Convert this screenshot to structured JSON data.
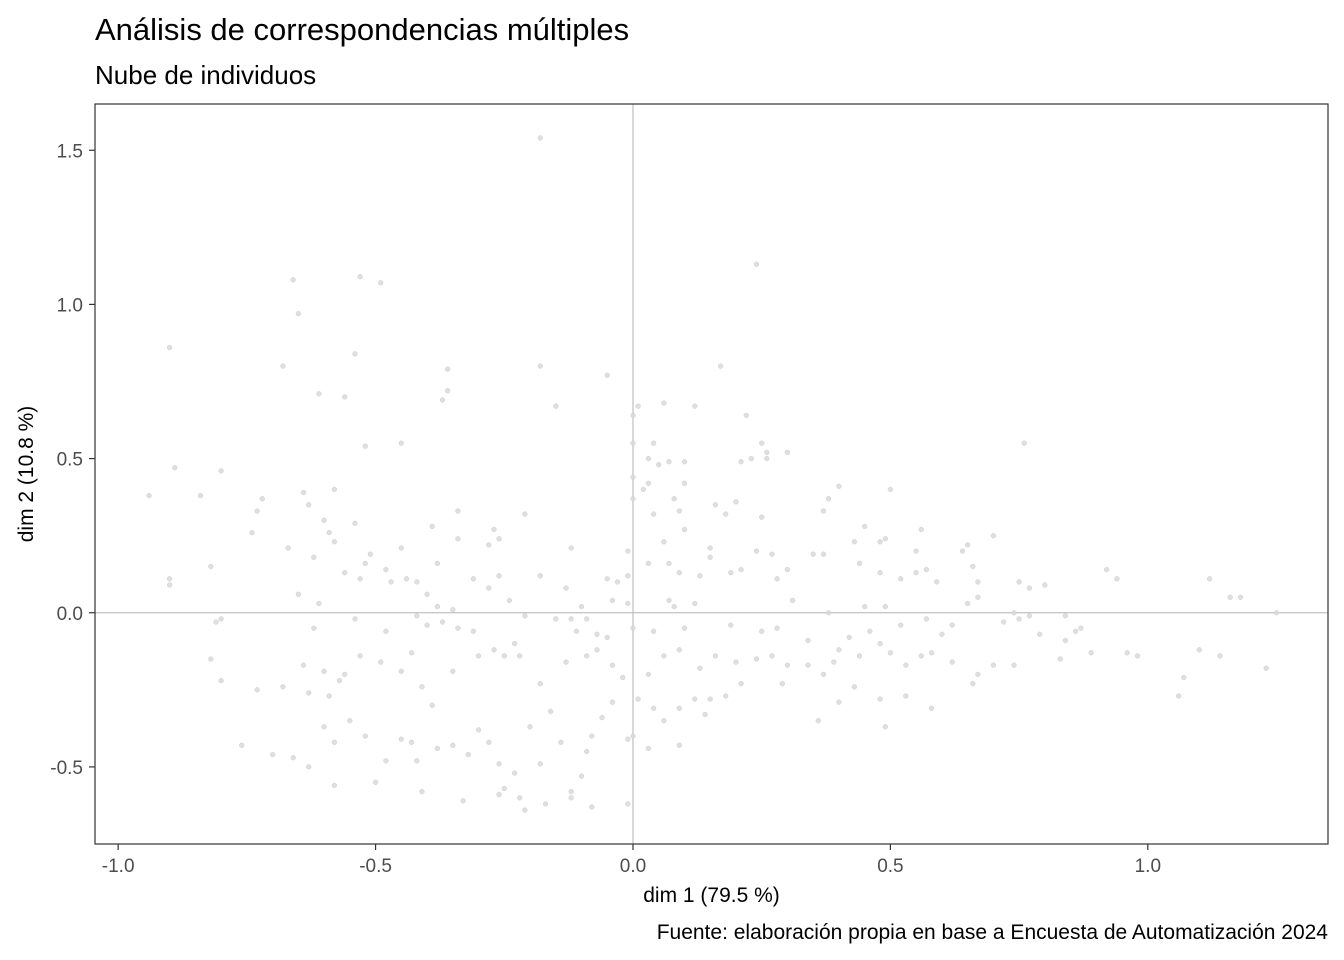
{
  "chart_data": {
    "type": "scatter",
    "title": "Análisis de correspondencias múltiples",
    "subtitle": "Nube de individuos",
    "xlabel": "dim 1 (79.5 %)",
    "ylabel": "dim 2 (10.8 %)",
    "caption": "Fuente: elaboración propia en base a Encuesta de Automatización 2024",
    "xlim": [
      -1.045,
      1.35
    ],
    "ylim": [
      -0.75,
      1.65
    ],
    "xticks": [
      -1.0,
      -0.5,
      0.0,
      0.5,
      1.0
    ],
    "xtick_labels": [
      "-1.0",
      "-0.5",
      "0.0",
      "0.5",
      "1.0"
    ],
    "yticks": [
      -0.5,
      0.0,
      0.5,
      1.0,
      1.5
    ],
    "ytick_labels": [
      "-0.5",
      "0.0",
      "0.5",
      "1.0",
      "1.5"
    ],
    "reference_lines": {
      "x": 0,
      "y": 0
    },
    "grid": false,
    "point_color": "#d9d9d9",
    "points": [
      [
        -0.18,
        1.54
      ],
      [
        0.24,
        1.13
      ],
      [
        -0.53,
        1.09
      ],
      [
        -0.66,
        1.08
      ],
      [
        -0.49,
        1.07
      ],
      [
        -0.65,
        0.97
      ],
      [
        -0.9,
        0.86
      ],
      [
        -0.54,
        0.84
      ],
      [
        0.17,
        0.8
      ],
      [
        -0.68,
        0.8
      ],
      [
        -0.18,
        0.8
      ],
      [
        -0.36,
        0.79
      ],
      [
        -0.05,
        0.77
      ],
      [
        -0.36,
        0.72
      ],
      [
        -0.61,
        0.71
      ],
      [
        -0.37,
        0.69
      ],
      [
        -0.56,
        0.7
      ],
      [
        -0.15,
        0.67
      ],
      [
        0.01,
        0.67
      ],
      [
        0.06,
        0.68
      ],
      [
        0.12,
        0.67
      ],
      [
        0.0,
        0.64
      ],
      [
        0.22,
        0.64
      ],
      [
        0.0,
        0.55
      ],
      [
        0.04,
        0.55
      ],
      [
        0.25,
        0.55
      ],
      [
        0.26,
        0.52
      ],
      [
        0.3,
        0.52
      ],
      [
        -0.45,
        0.55
      ],
      [
        0.76,
        0.55
      ],
      [
        -0.52,
        0.54
      ],
      [
        0.26,
        0.5
      ],
      [
        0.23,
        0.5
      ],
      [
        0.21,
        0.49
      ],
      [
        0.03,
        0.5
      ],
      [
        0.05,
        0.48
      ],
      [
        0.07,
        0.49
      ],
      [
        0.1,
        0.49
      ],
      [
        -0.89,
        0.47
      ],
      [
        -0.8,
        0.46
      ],
      [
        -0.94,
        0.38
      ],
      [
        -0.84,
        0.38
      ],
      [
        -0.73,
        0.33
      ],
      [
        -0.72,
        0.37
      ],
      [
        -0.64,
        0.39
      ],
      [
        -0.58,
        0.4
      ],
      [
        -0.63,
        0.35
      ],
      [
        0.0,
        0.44
      ],
      [
        0.03,
        0.42
      ],
      [
        0.02,
        0.4
      ],
      [
        0.1,
        0.42
      ],
      [
        0.08,
        0.37
      ],
      [
        0.16,
        0.35
      ],
      [
        0.2,
        0.36
      ],
      [
        0.4,
        0.41
      ],
      [
        0.5,
        0.4
      ],
      [
        0.38,
        0.37
      ],
      [
        0.37,
        0.33
      ],
      [
        0.04,
        0.32
      ],
      [
        0.0,
        0.37
      ],
      [
        0.09,
        0.33
      ],
      [
        0.25,
        0.31
      ],
      [
        -0.6,
        0.3
      ],
      [
        -0.54,
        0.29
      ],
      [
        -0.59,
        0.26
      ],
      [
        -0.74,
        0.26
      ],
      [
        -0.21,
        0.32
      ],
      [
        -0.34,
        0.33
      ],
      [
        -0.27,
        0.27
      ],
      [
        -0.34,
        0.24
      ],
      [
        0.18,
        0.32
      ],
      [
        0.06,
        0.23
      ],
      [
        0.1,
        0.27
      ],
      [
        0.45,
        0.28
      ],
      [
        0.56,
        0.27
      ],
      [
        0.7,
        0.25
      ],
      [
        -0.39,
        0.28
      ],
      [
        -0.58,
        0.23
      ],
      [
        -0.67,
        0.21
      ],
      [
        -0.62,
        0.18
      ],
      [
        -0.51,
        0.19
      ],
      [
        -0.45,
        0.21
      ],
      [
        -0.28,
        0.22
      ],
      [
        -0.26,
        0.24
      ],
      [
        -0.12,
        0.21
      ],
      [
        -0.01,
        0.2
      ],
      [
        0.15,
        0.21
      ],
      [
        0.15,
        0.18
      ],
      [
        0.24,
        0.2
      ],
      [
        0.27,
        0.19
      ],
      [
        0.35,
        0.19
      ],
      [
        0.43,
        0.23
      ],
      [
        0.49,
        0.24
      ],
      [
        0.48,
        0.23
      ],
      [
        0.55,
        0.2
      ],
      [
        0.64,
        0.2
      ],
      [
        0.65,
        0.22
      ],
      [
        -0.56,
        0.13
      ],
      [
        -0.52,
        0.16
      ],
      [
        -0.38,
        0.16
      ],
      [
        -0.48,
        0.14
      ],
      [
        -0.53,
        0.11
      ],
      [
        -0.31,
        0.11
      ],
      [
        -0.26,
        0.12
      ],
      [
        -0.28,
        0.08
      ],
      [
        -0.42,
        0.1
      ],
      [
        -0.44,
        0.11
      ],
      [
        -0.47,
        0.1
      ],
      [
        -0.18,
        0.12
      ],
      [
        -0.13,
        0.08
      ],
      [
        -0.05,
        0.11
      ],
      [
        -0.03,
        0.1
      ],
      [
        -0.01,
        0.12
      ],
      [
        0.03,
        0.16
      ],
      [
        0.07,
        0.16
      ],
      [
        0.09,
        0.13
      ],
      [
        0.13,
        0.12
      ],
      [
        0.19,
        0.13
      ],
      [
        0.21,
        0.14
      ],
      [
        0.28,
        0.11
      ],
      [
        0.3,
        0.14
      ],
      [
        0.37,
        0.19
      ],
      [
        0.44,
        0.16
      ],
      [
        0.48,
        0.13
      ],
      [
        0.52,
        0.11
      ],
      [
        0.55,
        0.13
      ],
      [
        0.57,
        0.14
      ],
      [
        0.66,
        0.15
      ],
      [
        0.59,
        0.1
      ],
      [
        0.67,
        0.1
      ],
      [
        0.75,
        0.1
      ],
      [
        0.77,
        0.08
      ],
      [
        0.8,
        0.09
      ],
      [
        0.92,
        0.14
      ],
      [
        0.94,
        0.11
      ],
      [
        1.12,
        0.11
      ],
      [
        1.16,
        0.05
      ],
      [
        1.18,
        0.05
      ],
      [
        1.25,
        0.0
      ],
      [
        -0.9,
        0.09
      ],
      [
        -0.82,
        0.15
      ],
      [
        -0.9,
        0.11
      ],
      [
        -0.4,
        0.06
      ],
      [
        -0.65,
        0.06
      ],
      [
        -0.61,
        0.03
      ],
      [
        -0.38,
        0.02
      ],
      [
        -0.35,
        0.01
      ],
      [
        -0.24,
        0.04
      ],
      [
        -0.21,
        -0.01
      ],
      [
        -0.1,
        0.02
      ],
      [
        -0.09,
        -0.02
      ],
      [
        -0.04,
        0.04
      ],
      [
        -0.01,
        0.03
      ],
      [
        0.08,
        0.02
      ],
      [
        0.07,
        0.04
      ],
      [
        0.12,
        0.03
      ],
      [
        0.31,
        0.04
      ],
      [
        0.38,
        0.0
      ],
      [
        0.49,
        0.02
      ],
      [
        0.45,
        0.02
      ],
      [
        0.57,
        -0.02
      ],
      [
        0.65,
        0.03
      ],
      [
        0.67,
        0.05
      ],
      [
        0.74,
        0.0
      ],
      [
        0.75,
        -0.02
      ],
      [
        0.77,
        -0.01
      ],
      [
        0.84,
        -0.01
      ],
      [
        -0.81,
        -0.03
      ],
      [
        -0.8,
        -0.02
      ],
      [
        -0.54,
        -0.02
      ],
      [
        -0.62,
        -0.05
      ],
      [
        -0.48,
        -0.06
      ],
      [
        -0.42,
        -0.01
      ],
      [
        -0.4,
        -0.04
      ],
      [
        -0.37,
        -0.03
      ],
      [
        -0.34,
        -0.05
      ],
      [
        -0.31,
        -0.06
      ],
      [
        -0.15,
        -0.02
      ],
      [
        -0.12,
        -0.02
      ],
      [
        -0.11,
        -0.06
      ],
      [
        -0.07,
        -0.07
      ],
      [
        -0.05,
        -0.08
      ],
      [
        0.0,
        -0.05
      ],
      [
        0.04,
        -0.06
      ],
      [
        0.1,
        -0.05
      ],
      [
        0.19,
        -0.04
      ],
      [
        0.25,
        -0.06
      ],
      [
        0.28,
        -0.05
      ],
      [
        0.34,
        -0.09
      ],
      [
        0.42,
        -0.08
      ],
      [
        0.46,
        -0.06
      ],
      [
        0.52,
        -0.04
      ],
      [
        0.6,
        -0.07
      ],
      [
        0.62,
        -0.04
      ],
      [
        0.72,
        -0.03
      ],
      [
        0.79,
        -0.07
      ],
      [
        0.84,
        -0.09
      ],
      [
        0.86,
        -0.06
      ],
      [
        0.87,
        -0.05
      ],
      [
        -0.82,
        -0.15
      ],
      [
        -0.8,
        -0.22
      ],
      [
        -0.73,
        -0.25
      ],
      [
        -0.68,
        -0.24
      ],
      [
        -0.64,
        -0.17
      ],
      [
        -0.6,
        -0.19
      ],
      [
        -0.63,
        -0.26
      ],
      [
        -0.59,
        -0.27
      ],
      [
        -0.57,
        -0.22
      ],
      [
        -0.56,
        -0.2
      ],
      [
        -0.53,
        -0.14
      ],
      [
        -0.49,
        -0.16
      ],
      [
        -0.45,
        -0.19
      ],
      [
        -0.43,
        -0.13
      ],
      [
        -0.41,
        -0.24
      ],
      [
        -0.35,
        -0.19
      ],
      [
        -0.3,
        -0.14
      ],
      [
        -0.27,
        -0.12
      ],
      [
        -0.25,
        -0.14
      ],
      [
        -0.23,
        -0.1
      ],
      [
        -0.22,
        -0.14
      ],
      [
        -0.18,
        -0.23
      ],
      [
        -0.13,
        -0.16
      ],
      [
        -0.09,
        -0.14
      ],
      [
        -0.07,
        -0.12
      ],
      [
        -0.04,
        -0.17
      ],
      [
        -0.02,
        -0.21
      ],
      [
        0.03,
        -0.2
      ],
      [
        0.06,
        -0.14
      ],
      [
        0.09,
        -0.12
      ],
      [
        0.13,
        -0.18
      ],
      [
        0.16,
        -0.14
      ],
      [
        0.2,
        -0.16
      ],
      [
        0.24,
        -0.15
      ],
      [
        0.27,
        -0.14
      ],
      [
        0.3,
        -0.17
      ],
      [
        0.34,
        -0.17
      ],
      [
        0.37,
        -0.2
      ],
      [
        0.39,
        -0.16
      ],
      [
        0.4,
        -0.12
      ],
      [
        0.44,
        -0.14
      ],
      [
        0.48,
        -0.1
      ],
      [
        0.5,
        -0.13
      ],
      [
        0.53,
        -0.17
      ],
      [
        0.56,
        -0.14
      ],
      [
        0.58,
        -0.13
      ],
      [
        0.62,
        -0.16
      ],
      [
        0.67,
        -0.2
      ],
      [
        0.7,
        -0.17
      ],
      [
        0.74,
        -0.17
      ],
      [
        0.83,
        -0.15
      ],
      [
        0.89,
        -0.13
      ],
      [
        0.96,
        -0.13
      ],
      [
        0.98,
        -0.14
      ],
      [
        1.07,
        -0.21
      ],
      [
        1.1,
        -0.12
      ],
      [
        1.14,
        -0.14
      ],
      [
        1.23,
        -0.18
      ],
      [
        -0.76,
        -0.43
      ],
      [
        -0.7,
        -0.46
      ],
      [
        -0.66,
        -0.47
      ],
      [
        -0.63,
        -0.5
      ],
      [
        -0.6,
        -0.37
      ],
      [
        -0.58,
        -0.42
      ],
      [
        -0.58,
        -0.56
      ],
      [
        -0.55,
        -0.35
      ],
      [
        -0.52,
        -0.4
      ],
      [
        -0.5,
        -0.55
      ],
      [
        -0.48,
        -0.48
      ],
      [
        -0.45,
        -0.41
      ],
      [
        -0.43,
        -0.42
      ],
      [
        -0.42,
        -0.48
      ],
      [
        -0.39,
        -0.3
      ],
      [
        -0.38,
        -0.44
      ],
      [
        -0.35,
        -0.43
      ],
      [
        -0.32,
        -0.46
      ],
      [
        -0.3,
        -0.38
      ],
      [
        -0.28,
        -0.42
      ],
      [
        -0.26,
        -0.49
      ],
      [
        -0.25,
        -0.57
      ],
      [
        -0.23,
        -0.52
      ],
      [
        -0.22,
        -0.6
      ],
      [
        -0.2,
        -0.37
      ],
      [
        -0.18,
        -0.49
      ],
      [
        -0.16,
        -0.32
      ],
      [
        -0.14,
        -0.42
      ],
      [
        -0.12,
        -0.58
      ],
      [
        -0.1,
        -0.53
      ],
      [
        -0.09,
        -0.45
      ],
      [
        -0.08,
        -0.4
      ],
      [
        -0.06,
        -0.34
      ],
      [
        -0.04,
        -0.29
      ],
      [
        -0.01,
        -0.41
      ],
      [
        0.01,
        -0.28
      ],
      [
        0.03,
        -0.44
      ],
      [
        0.06,
        -0.35
      ],
      [
        0.09,
        -0.31
      ],
      [
        0.09,
        -0.43
      ],
      [
        0.14,
        -0.33
      ],
      [
        0.18,
        -0.27
      ],
      [
        0.21,
        -0.23
      ],
      [
        0.29,
        -0.23
      ],
      [
        0.36,
        -0.35
      ],
      [
        0.4,
        -0.29
      ],
      [
        0.43,
        -0.24
      ],
      [
        0.48,
        -0.28
      ],
      [
        0.49,
        -0.37
      ],
      [
        0.53,
        -0.27
      ],
      [
        0.58,
        -0.31
      ],
      [
        0.66,
        -0.23
      ],
      [
        1.06,
        -0.27
      ],
      [
        -0.41,
        -0.58
      ],
      [
        -0.33,
        -0.61
      ],
      [
        -0.26,
        -0.59
      ],
      [
        -0.21,
        -0.64
      ],
      [
        -0.17,
        -0.62
      ],
      [
        -0.12,
        -0.6
      ],
      [
        -0.08,
        -0.63
      ],
      [
        -0.01,
        -0.62
      ],
      [
        0.0,
        -0.4
      ],
      [
        0.04,
        -0.31
      ],
      [
        0.12,
        -0.28
      ],
      [
        0.15,
        -0.28
      ]
    ]
  }
}
